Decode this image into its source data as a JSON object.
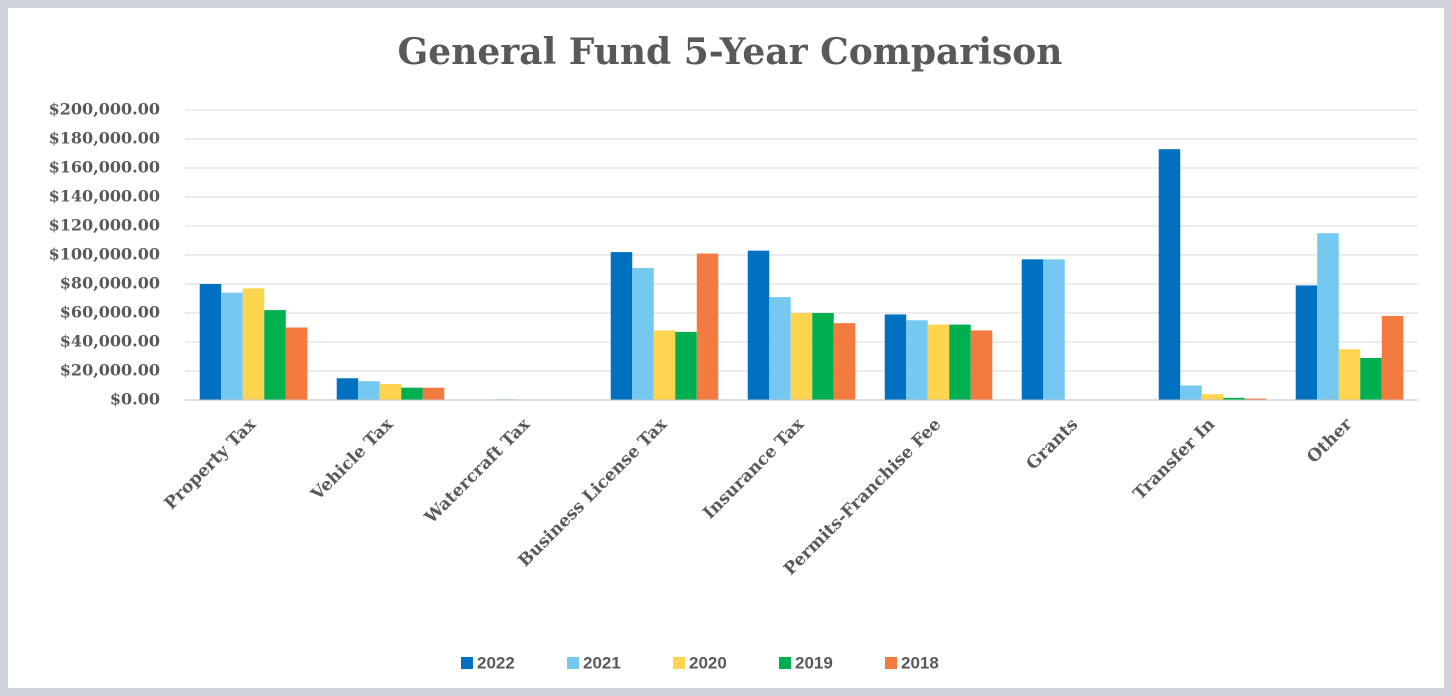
{
  "chart_data": {
    "type": "bar",
    "title": "General Fund 5-Year Comparison",
    "categories": [
      "Property Tax",
      "Vehicle Tax",
      "Watercraft Tax",
      "Business License Tax",
      "Insurance Tax",
      "Permits-Franchise Fee",
      "Grants",
      "Transfer In",
      "Other"
    ],
    "series": [
      {
        "name": "2022",
        "color": "#0070c0",
        "values": [
          80000,
          15000,
          300,
          102000,
          103000,
          59000,
          97000,
          173000,
          79000
        ]
      },
      {
        "name": "2021",
        "color": "#75c9f0",
        "values": [
          74000,
          13000,
          500,
          91000,
          71000,
          55000,
          97000,
          10000,
          115000
        ]
      },
      {
        "name": "2020",
        "color": "#ffd44f",
        "values": [
          77000,
          11000,
          300,
          48000,
          60000,
          52000,
          0,
          4000,
          35000
        ]
      },
      {
        "name": "2019",
        "color": "#00b050",
        "values": [
          62000,
          8500,
          200,
          47000,
          60000,
          52000,
          0,
          1500,
          29000
        ]
      },
      {
        "name": "2018",
        "color": "#f47b3f",
        "values": [
          50000,
          8500,
          200,
          101000,
          53000,
          48000,
          0,
          1000,
          58000
        ]
      }
    ],
    "ylim": [
      0,
      200000
    ],
    "yticks": [
      {
        "value": 0,
        "label": "$0.00"
      },
      {
        "value": 20000,
        "label": "$20,000.00"
      },
      {
        "value": 40000,
        "label": "$40,000.00"
      },
      {
        "value": 60000,
        "label": "$60,000.00"
      },
      {
        "value": 80000,
        "label": "$80,000.00"
      },
      {
        "value": 100000,
        "label": "$100,000.00"
      },
      {
        "value": 120000,
        "label": "$120,000.00"
      },
      {
        "value": 140000,
        "label": "$140,000.00"
      },
      {
        "value": 160000,
        "label": "$160,000.00"
      },
      {
        "value": 180000,
        "label": "$180,000.00"
      },
      {
        "value": 200000,
        "label": "$200,000.00"
      }
    ],
    "grid": true,
    "legend": "bottom"
  }
}
